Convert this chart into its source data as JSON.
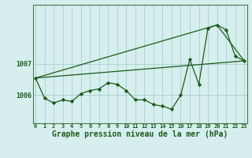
{
  "x": [
    0,
    1,
    2,
    3,
    4,
    5,
    6,
    7,
    8,
    9,
    10,
    11,
    12,
    13,
    14,
    15,
    16,
    17,
    18,
    19,
    20,
    21,
    22,
    23
  ],
  "y_main": [
    1006.55,
    1005.9,
    1005.75,
    1005.85,
    1005.8,
    1006.05,
    1006.15,
    1006.2,
    1006.4,
    1006.35,
    1006.15,
    1005.85,
    1005.85,
    1005.7,
    1005.65,
    1005.55,
    1006.0,
    1007.15,
    1006.35,
    1008.15,
    1008.25,
    1008.1,
    1007.25,
    1007.1
  ],
  "y_line1_x": [
    0,
    23
  ],
  "y_line1_y": [
    1006.55,
    1007.1
  ],
  "y_line2_x": [
    0,
    20,
    23
  ],
  "y_line2_y": [
    1006.55,
    1008.25,
    1007.1
  ],
  "background_color": "#d6eeee",
  "grid_color": "#a8d0d0",
  "line_color": "#1a5c1a",
  "marker_color": "#1a5c1a",
  "text_color": "#1a5c1a",
  "xlabel": "Graphe pression niveau de la mer (hPa)",
  "yticks": [
    1006,
    1007
  ],
  "ylim": [
    1005.1,
    1008.9
  ],
  "xlim": [
    -0.3,
    23.3
  ],
  "tick_fontsize": 5.0,
  "ytick_fontsize": 6.0,
  "label_fontsize": 7.0
}
